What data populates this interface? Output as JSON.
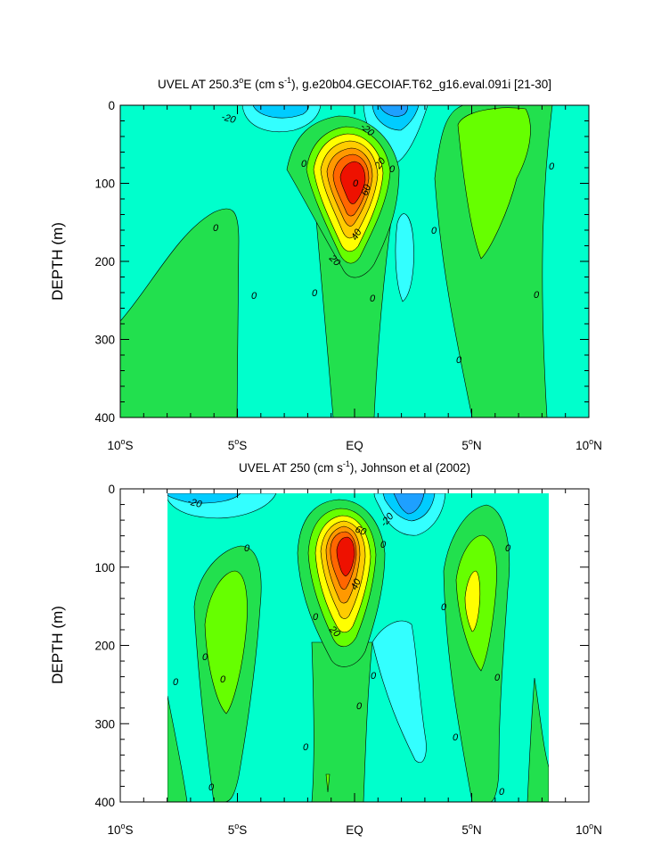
{
  "chart_data": [
    {
      "type": "heatmap",
      "subtype": "filled-contour",
      "title_main": "UVEL AT 250.3",
      "title_deg": "o",
      "title_e": "E (cm s",
      "title_sup": "-1",
      "title_rest": "), g.e20b04.GECOIAF.T62_g16.eval.091i [21-30]",
      "ylabel": "DEPTH (m)",
      "xlabel": "",
      "x_ticks": [
        {
          "num": "10",
          "hemi": "S"
        },
        {
          "num": "5",
          "hemi": "S"
        },
        {
          "num": "EQ",
          "hemi": ""
        },
        {
          "num": "5",
          "hemi": "N"
        },
        {
          "num": "10",
          "hemi": "N"
        }
      ],
      "y_ticks": [
        "0",
        "100",
        "200",
        "300",
        "400"
      ],
      "xlim": [
        -10,
        10
      ],
      "ylim": [
        400,
        0
      ],
      "y_inverted": true,
      "contour_interval": 10,
      "colors": {
        "le_-30": "#1ea0ff",
        "-30_-20": "#00ccff",
        "-20_-10": "#33ffff",
        "-10_0": "#00ffcc",
        "0_10": "#22e04e",
        "10_20": "#66ff00",
        "20_30": "#ffff00",
        "30_40": "#ffcc00",
        "40_50": "#ff9900",
        "50_60": "#ff6600",
        "ge_60": "#ee1100"
      },
      "contour_labels": [
        {
          "text": "-20",
          "lat": -5.8,
          "depth": 12
        },
        {
          "text": "-20",
          "lat": 0.4,
          "depth": 22
        },
        {
          "text": "0",
          "lat": -2.2,
          "depth": 74
        },
        {
          "text": "20",
          "lat": 1.0,
          "depth": 78
        },
        {
          "text": "0",
          "lat": 1.6,
          "depth": 80
        },
        {
          "text": "0",
          "lat": 7.0,
          "depth": 78
        },
        {
          "text": "0",
          "lat": -0.1,
          "depth": 98
        },
        {
          "text": "60",
          "lat": 0.7,
          "depth": 110
        },
        {
          "text": "40",
          "lat": 0.3,
          "depth": 170
        },
        {
          "text": "20",
          "lat": -0.9,
          "depth": 195
        },
        {
          "text": "0",
          "lat": -5.8,
          "depth": 157
        },
        {
          "text": "0",
          "lat": 3.4,
          "depth": 160
        },
        {
          "text": "0",
          "lat": -4.9,
          "depth": 243
        },
        {
          "text": "0",
          "lat": -1.7,
          "depth": 240
        },
        {
          "text": "0",
          "lat": 0.8,
          "depth": 245
        },
        {
          "text": "0",
          "lat": 7.8,
          "depth": 242
        },
        {
          "text": "0",
          "lat": 4.5,
          "depth": 325
        }
      ]
    },
    {
      "type": "heatmap",
      "subtype": "filled-contour",
      "title_main": "UVEL AT 250 (cm s",
      "title_sup": "-1",
      "title_rest": "), Johnson et al (2002)",
      "ylabel": "DEPTH (m)",
      "xlabel": "",
      "x_ticks": [
        {
          "num": "10",
          "hemi": "S"
        },
        {
          "num": "5",
          "hemi": "S"
        },
        {
          "num": "EQ",
          "hemi": ""
        },
        {
          "num": "5",
          "hemi": "N"
        },
        {
          "num": "10",
          "hemi": "N"
        }
      ],
      "y_ticks": [
        "0",
        "100",
        "200",
        "300",
        "400"
      ],
      "xlim": [
        -10,
        10
      ],
      "ylim": [
        400,
        0
      ],
      "y_inverted": true,
      "data_extent_lat": [
        -8,
        8.2
      ],
      "contour_interval": 10,
      "contour_labels": [
        {
          "text": "-20",
          "lat": -6.9,
          "depth": 14
        },
        {
          "text": "-20",
          "lat": 2.8,
          "depth": 48
        },
        {
          "text": "60",
          "lat": 0.2,
          "depth": 50
        },
        {
          "text": "0",
          "lat": -4.7,
          "depth": 76
        },
        {
          "text": "0",
          "lat": 1.2,
          "depth": 70
        },
        {
          "text": "40",
          "lat": 0.3,
          "depth": 120
        },
        {
          "text": "0",
          "lat": 3.8,
          "depth": 150
        },
        {
          "text": "0",
          "lat": 6.4,
          "depth": 75
        },
        {
          "text": "0",
          "lat": -1.6,
          "depth": 165
        },
        {
          "text": "20",
          "lat": -0.8,
          "depth": 180
        },
        {
          "text": "0",
          "lat": -6.3,
          "depth": 215
        },
        {
          "text": "0",
          "lat": -4.7,
          "depth": 243
        },
        {
          "text": "0",
          "lat": -8.6,
          "depth": 248
        },
        {
          "text": "0",
          "lat": 0.9,
          "depth": 238
        },
        {
          "text": "0",
          "lat": 5.9,
          "depth": 243
        },
        {
          "text": "0",
          "lat": 0.3,
          "depth": 278
        },
        {
          "text": "0",
          "lat": -1.9,
          "depth": 332
        },
        {
          "text": "0",
          "lat": 4.4,
          "depth": 318
        },
        {
          "text": "0",
          "lat": -5.0,
          "depth": 384
        },
        {
          "text": "0",
          "lat": 7.5,
          "depth": 390
        }
      ]
    }
  ]
}
